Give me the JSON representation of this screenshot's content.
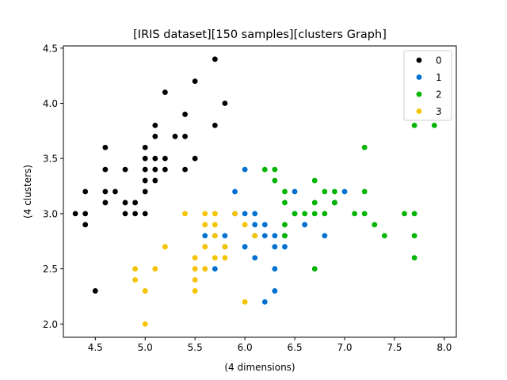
{
  "chart_data": {
    "type": "scatter",
    "title": "[IRIS dataset][150 samples][clusters Graph]",
    "xlabel": "(4 dimensions)",
    "ylabel": "(4 clusters)",
    "xlim": [
      4.18,
      8.12
    ],
    "ylim": [
      1.88,
      4.52
    ],
    "xticks": [
      4.5,
      5.0,
      5.5,
      6.0,
      6.5,
      7.0,
      7.5,
      8.0
    ],
    "xtick_labels": [
      "4.5",
      "5.0",
      "5.5",
      "6.0",
      "6.5",
      "7.0",
      "7.5",
      "8.0"
    ],
    "yticks": [
      2.0,
      2.5,
      3.0,
      3.5,
      4.0,
      4.5
    ],
    "ytick_labels": [
      "2.0",
      "2.5",
      "3.0",
      "3.5",
      "4.0",
      "4.5"
    ],
    "grid": false,
    "legend_position": "top-right",
    "series": [
      {
        "name": "0",
        "color": "#000000",
        "points": [
          [
            4.3,
            3.0
          ],
          [
            4.4,
            2.9
          ],
          [
            4.4,
            3.0
          ],
          [
            4.4,
            3.2
          ],
          [
            4.5,
            2.3
          ],
          [
            4.6,
            3.1
          ],
          [
            4.6,
            3.2
          ],
          [
            4.6,
            3.4
          ],
          [
            4.6,
            3.6
          ],
          [
            4.7,
            3.2
          ],
          [
            4.8,
            3.0
          ],
          [
            4.8,
            3.1
          ],
          [
            4.8,
            3.4
          ],
          [
            4.9,
            3.0
          ],
          [
            4.9,
            3.1
          ],
          [
            5.0,
            3.0
          ],
          [
            5.0,
            3.2
          ],
          [
            5.0,
            3.3
          ],
          [
            5.0,
            3.4
          ],
          [
            5.0,
            3.5
          ],
          [
            5.0,
            3.6
          ],
          [
            5.1,
            3.3
          ],
          [
            5.1,
            3.4
          ],
          [
            5.1,
            3.5
          ],
          [
            5.1,
            3.7
          ],
          [
            5.1,
            3.8
          ],
          [
            5.2,
            3.4
          ],
          [
            5.2,
            3.5
          ],
          [
            5.2,
            4.1
          ],
          [
            5.3,
            3.7
          ],
          [
            5.4,
            3.4
          ],
          [
            5.4,
            3.7
          ],
          [
            5.4,
            3.9
          ],
          [
            5.5,
            3.5
          ],
          [
            5.5,
            4.2
          ],
          [
            5.7,
            3.8
          ],
          [
            5.7,
            4.4
          ],
          [
            5.8,
            4.0
          ]
        ]
      },
      {
        "name": "1",
        "color": "#0070d0",
        "points": [
          [
            5.6,
            2.8
          ],
          [
            5.7,
            2.5
          ],
          [
            5.7,
            2.8
          ],
          [
            5.8,
            2.7
          ],
          [
            5.8,
            2.8
          ],
          [
            5.9,
            3.0
          ],
          [
            5.9,
            3.2
          ],
          [
            6.0,
            2.7
          ],
          [
            6.0,
            3.0
          ],
          [
            6.0,
            3.4
          ],
          [
            6.1,
            2.6
          ],
          [
            6.1,
            2.8
          ],
          [
            6.1,
            2.9
          ],
          [
            6.1,
            3.0
          ],
          [
            6.2,
            2.2
          ],
          [
            6.2,
            2.8
          ],
          [
            6.2,
            2.9
          ],
          [
            6.3,
            2.3
          ],
          [
            6.3,
            2.5
          ],
          [
            6.3,
            2.7
          ],
          [
            6.3,
            2.8
          ],
          [
            6.4,
            2.7
          ],
          [
            6.4,
            2.8
          ],
          [
            6.5,
            3.0
          ],
          [
            6.5,
            3.2
          ],
          [
            6.6,
            2.9
          ],
          [
            6.8,
            2.8
          ],
          [
            6.9,
            3.1
          ],
          [
            7.0,
            3.2
          ]
        ]
      },
      {
        "name": "2",
        "color": "#00b400",
        "points": [
          [
            6.2,
            3.4
          ],
          [
            6.3,
            3.3
          ],
          [
            6.3,
            3.4
          ],
          [
            6.4,
            2.8
          ],
          [
            6.4,
            2.9
          ],
          [
            6.4,
            3.1
          ],
          [
            6.4,
            3.2
          ],
          [
            6.5,
            3.0
          ],
          [
            6.6,
            3.0
          ],
          [
            6.7,
            2.5
          ],
          [
            6.7,
            3.0
          ],
          [
            6.7,
            3.1
          ],
          [
            6.7,
            3.3
          ],
          [
            6.8,
            3.0
          ],
          [
            6.8,
            3.2
          ],
          [
            6.9,
            3.1
          ],
          [
            6.9,
            3.2
          ],
          [
            7.1,
            3.0
          ],
          [
            7.2,
            3.0
          ],
          [
            7.2,
            3.2
          ],
          [
            7.2,
            3.6
          ],
          [
            7.3,
            2.9
          ],
          [
            7.4,
            2.8
          ],
          [
            7.6,
            3.0
          ],
          [
            7.7,
            2.6
          ],
          [
            7.7,
            2.8
          ],
          [
            7.7,
            3.0
          ],
          [
            7.7,
            3.8
          ],
          [
            7.9,
            3.8
          ]
        ]
      },
      {
        "name": "3",
        "color": "#f5c400",
        "points": [
          [
            4.9,
            2.4
          ],
          [
            4.9,
            2.5
          ],
          [
            5.0,
            2.0
          ],
          [
            5.0,
            2.3
          ],
          [
            5.1,
            2.5
          ],
          [
            5.2,
            2.7
          ],
          [
            5.4,
            3.0
          ],
          [
            5.5,
            2.3
          ],
          [
            5.5,
            2.4
          ],
          [
            5.5,
            2.5
          ],
          [
            5.5,
            2.6
          ],
          [
            5.6,
            2.5
          ],
          [
            5.6,
            2.7
          ],
          [
            5.6,
            2.9
          ],
          [
            5.6,
            3.0
          ],
          [
            5.7,
            2.6
          ],
          [
            5.7,
            2.8
          ],
          [
            5.7,
            2.9
          ],
          [
            5.7,
            3.0
          ],
          [
            5.8,
            2.6
          ],
          [
            5.8,
            2.7
          ],
          [
            5.9,
            3.0
          ],
          [
            6.0,
            2.2
          ],
          [
            6.0,
            2.9
          ],
          [
            6.1,
            2.8
          ]
        ]
      }
    ]
  }
}
